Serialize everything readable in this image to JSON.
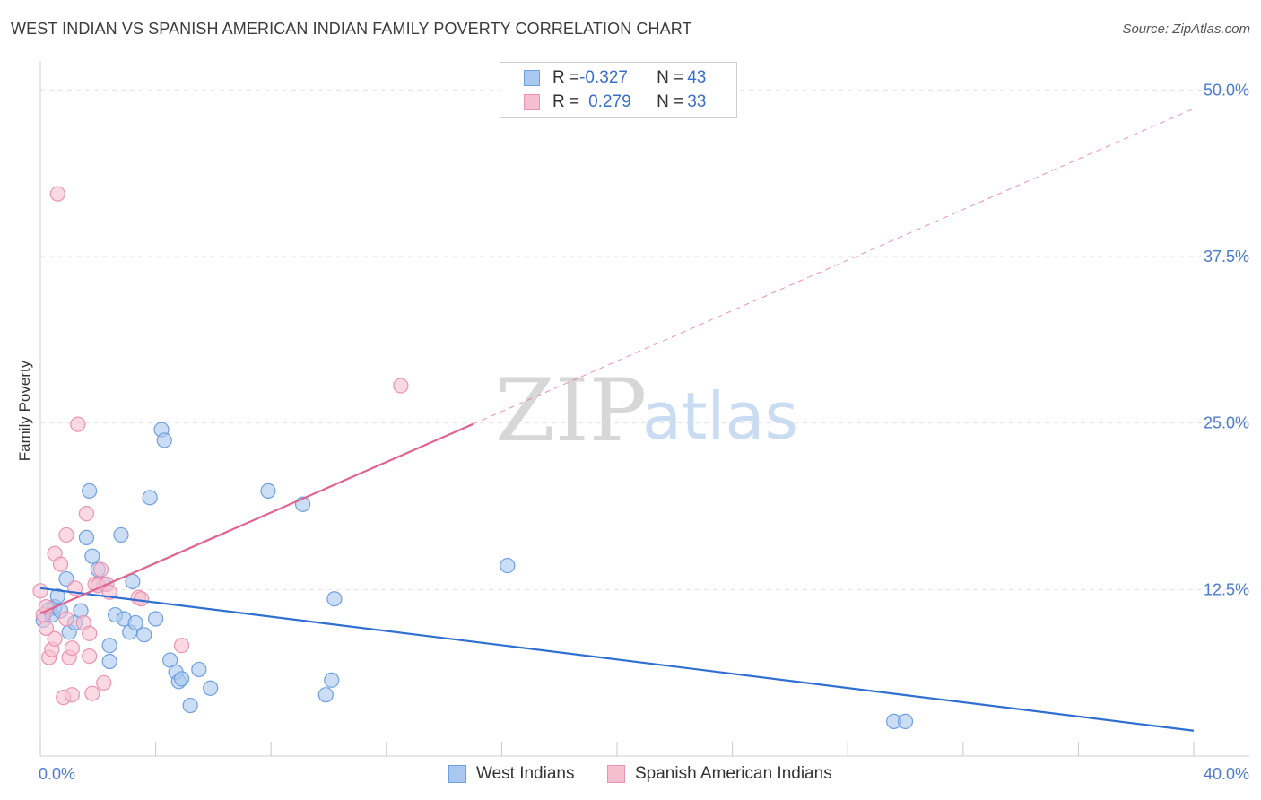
{
  "title": "WEST INDIAN VS SPANISH AMERICAN INDIAN FAMILY POVERTY CORRELATION CHART",
  "source": "Source: ZipAtlas.com",
  "watermark": {
    "zip": "ZIP",
    "atlas": "atlas"
  },
  "legend": {
    "rows": [
      {
        "r_label": "R = ",
        "r_value": "-0.327",
        "n_label": "N = ",
        "n_value": "43"
      },
      {
        "r_label": "R = ",
        "r_value": "0.279",
        "n_label": "N = ",
        "n_value": "33"
      }
    ]
  },
  "colors": {
    "blue_fill": "#a9c8f0",
    "blue_stroke": "#6f9fde",
    "blue_line": "#2f6fd0",
    "pink_fill": "#f6bfd0",
    "pink_stroke": "#eb93b0",
    "pink_line": "#e0648f",
    "grid": "#e2e2e2",
    "tick_text": "#4a7bd0"
  },
  "chart_data": {
    "type": "scatter",
    "title": "WEST INDIAN VS SPANISH AMERICAN INDIAN FAMILY POVERTY CORRELATION CHART",
    "xlabel": "",
    "ylabel": "Family Poverty",
    "xlim": [
      0,
      40
    ],
    "ylim": [
      0,
      51.5
    ],
    "x_tick_labels": [
      {
        "value": 0,
        "label": "0.0%"
      },
      {
        "value": 40,
        "label": "40.0%"
      }
    ],
    "y_tick_labels": [
      {
        "value": 12.5,
        "label": "12.5%"
      },
      {
        "value": 25.0,
        "label": "25.0%"
      },
      {
        "value": 37.5,
        "label": "37.5%"
      },
      {
        "value": 50.0,
        "label": "50.0%"
      }
    ],
    "series": [
      {
        "name": "West Indians",
        "color": "#a9c8f0",
        "points": [
          [
            0.1,
            10.2
          ],
          [
            0.3,
            11.0
          ],
          [
            0.4,
            10.6
          ],
          [
            0.5,
            11.2
          ],
          [
            0.6,
            12.0
          ],
          [
            0.7,
            10.9
          ],
          [
            0.9,
            13.3
          ],
          [
            1.0,
            9.3
          ],
          [
            1.2,
            10.0
          ],
          [
            1.4,
            10.9
          ],
          [
            1.6,
            16.4
          ],
          [
            1.7,
            19.9
          ],
          [
            1.8,
            15.0
          ],
          [
            2.0,
            14.0
          ],
          [
            2.2,
            12.9
          ],
          [
            2.4,
            7.1
          ],
          [
            2.4,
            8.3
          ],
          [
            2.6,
            10.6
          ],
          [
            2.8,
            16.6
          ],
          [
            2.9,
            10.3
          ],
          [
            3.1,
            9.3
          ],
          [
            3.2,
            13.1
          ],
          [
            3.3,
            10.0
          ],
          [
            3.6,
            9.1
          ],
          [
            3.8,
            19.4
          ],
          [
            4.0,
            10.3
          ],
          [
            4.2,
            24.5
          ],
          [
            4.3,
            23.7
          ],
          [
            4.5,
            7.2
          ],
          [
            4.7,
            6.3
          ],
          [
            4.8,
            5.6
          ],
          [
            4.9,
            5.8
          ],
          [
            5.2,
            3.8
          ],
          [
            5.5,
            6.5
          ],
          [
            5.9,
            5.1
          ],
          [
            7.9,
            19.9
          ],
          [
            9.1,
            18.9
          ],
          [
            9.9,
            4.6
          ],
          [
            10.1,
            5.7
          ],
          [
            10.2,
            11.8
          ],
          [
            16.2,
            14.3
          ],
          [
            29.6,
            2.6
          ],
          [
            30.0,
            2.6
          ]
        ],
        "trend": {
          "x": [
            0,
            40
          ],
          "y": [
            12.6,
            1.9
          ]
        }
      },
      {
        "name": "Spanish American Indians",
        "color": "#f6bfd0",
        "points": [
          [
            0.0,
            12.4
          ],
          [
            0.1,
            10.6
          ],
          [
            0.2,
            11.2
          ],
          [
            0.3,
            7.4
          ],
          [
            0.4,
            8.0
          ],
          [
            0.5,
            15.2
          ],
          [
            0.5,
            8.8
          ],
          [
            0.6,
            42.2
          ],
          [
            0.7,
            14.4
          ],
          [
            0.8,
            4.4
          ],
          [
            0.9,
            16.6
          ],
          [
            0.9,
            10.3
          ],
          [
            1.0,
            7.4
          ],
          [
            1.1,
            4.6
          ],
          [
            1.1,
            8.1
          ],
          [
            1.2,
            12.6
          ],
          [
            1.3,
            24.9
          ],
          [
            1.5,
            10.0
          ],
          [
            1.6,
            18.2
          ],
          [
            1.7,
            9.2
          ],
          [
            1.7,
            7.5
          ],
          [
            1.8,
            4.7
          ],
          [
            1.9,
            12.9
          ],
          [
            2.0,
            12.8
          ],
          [
            2.1,
            14.0
          ],
          [
            2.2,
            5.5
          ],
          [
            2.3,
            12.9
          ],
          [
            2.4,
            12.3
          ],
          [
            3.4,
            11.9
          ],
          [
            3.5,
            11.8
          ],
          [
            4.9,
            8.3
          ],
          [
            12.5,
            27.8
          ],
          [
            0.2,
            9.6
          ]
        ],
        "trend": {
          "x": [
            0,
            40
          ],
          "y": [
            10.7,
            48.6
          ],
          "solid_until_x": 15.0
        }
      }
    ],
    "legend_position": "top-center"
  }
}
